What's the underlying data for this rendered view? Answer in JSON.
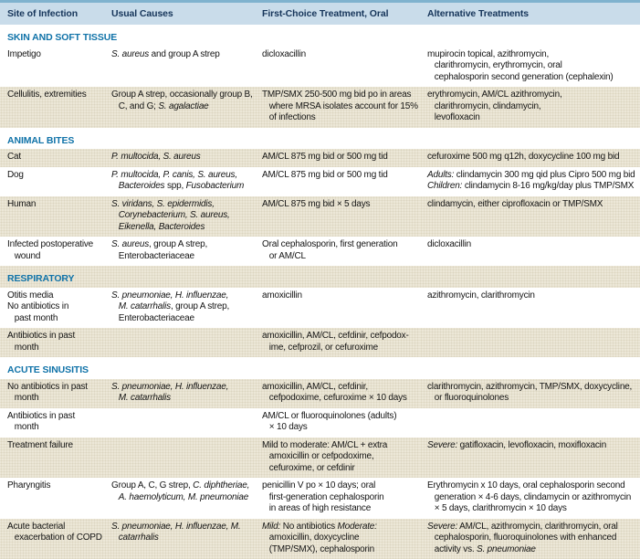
{
  "colors": {
    "top_border": "#7fb2ce",
    "header_bg": "#c9dcea",
    "header_text": "#16355a",
    "section_text": "#0f72a8",
    "row_shade": "#ece7d7",
    "body_text": "#141414",
    "background": "#ffffff"
  },
  "table": {
    "columns": [
      "Site of Infection",
      "Usual Causes",
      "First-Choice Treatment, Oral",
      "Alternative Treatments"
    ],
    "sections": [
      {
        "title": "SKIN AND SOFT TISSUE",
        "shaded": false,
        "rows": [
          {
            "shaded": false,
            "site": "Impetigo",
            "causes": "<i>S. aureus</i> and group A strep",
            "first_choice": "dicloxacillin",
            "alternative": "mupirocin topical, azithromycin,\n   clarithromycin, erythromycin, oral\n   cephalosporin second generation (cephalexin)"
          },
          {
            "shaded": true,
            "site": "Cellulitis, extremities",
            "causes": "Group A strep, occasionally group B,\n   C, and G; <i>S. agalactiae</i>",
            "first_choice": "TMP/SMX 250-500 mg bid po in areas\n   where MRSA isolates account for 15%\n   of infections",
            "alternative": "erythromycin, AM/CL azithromycin,\n   clarithromycin, clindamycin,\n   levofloxacin"
          }
        ]
      },
      {
        "title": "ANIMAL BITES",
        "shaded": false,
        "rows": [
          {
            "shaded": true,
            "site": "Cat",
            "causes": "<i>P. multocida, S. aureus</i>",
            "first_choice": "AM/CL 875 mg bid or 500 mg tid",
            "alternative": "cefuroxime 500 mg q12h, doxycycline 100 mg bid"
          },
          {
            "shaded": false,
            "site": "Dog",
            "causes": "<i>P. multocida, P. canis, S. aureus,\n   Bacteroides</i> spp, <i>Fusobacterium</i>",
            "first_choice": "AM/CL 875 mg bid or 500 mg tid",
            "alternative": "<i>Adults:</i> clindamycin 300 mg qid plus Cipro 500 mg bid\n<i>Children:</i> clindamycin 8-16 mg/kg/day plus TMP/SMX"
          },
          {
            "shaded": true,
            "site": "Human",
            "causes": "<i>S. viridans, S. epidermidis,\n   Corynebacterium, S. aureus,\n   Eikenella, Bacteroides</i>",
            "first_choice": "AM/CL 875 mg bid × 5 days",
            "alternative": "clindamycin, either ciprofloxacin or TMP/SMX"
          },
          {
            "shaded": false,
            "site": "Infected postoperative\n   wound",
            "causes": "<i>S. aureus</i>, group A strep,\n   Enterobacteriaceae",
            "first_choice": "Oral cephalosporin, first generation\n   or AM/CL",
            "alternative": "dicloxacillin"
          }
        ]
      },
      {
        "title": "RESPIRATORY",
        "shaded": true,
        "rows": [
          {
            "shaded": false,
            "site": "Otitis media\nNo antibiotics in\n   past month",
            "causes": "<i>S. pneumoniae, H. influenzae,\n   M. catarrhalis</i>, group A strep,\n   Enterobacteriaceae",
            "first_choice": "amoxicillin",
            "alternative": "azithromycin, clarithromycin"
          },
          {
            "shaded": true,
            "site": "Antibiotics in past\n   month",
            "causes": "",
            "first_choice": "amoxicillin, AM/CL, cefdinir, cefpodox-\n   ime, cefprozil, or cefuroxime",
            "alternative": ""
          }
        ]
      },
      {
        "title": "ACUTE SINUSITIS",
        "shaded": false,
        "rows": [
          {
            "shaded": true,
            "site": "No antibiotics in past\n   month",
            "causes": "<i>S. pneumoniae, H. influenzae,\n   M. catarrhalis</i>",
            "first_choice": "amoxicillin, AM/CL, cefdinir,\n   cefpodoxime, cefuroxime × 10 days",
            "alternative": "clarithromycin, azithromycin, TMP/SMX, doxycycline,\n   or fluoroquinolones"
          },
          {
            "shaded": false,
            "site": "Antibiotics in past\n   month",
            "causes": "",
            "first_choice": "AM/CL or fluoroquinolones (adults)\n   × 10 days",
            "alternative": ""
          },
          {
            "shaded": true,
            "site": "Treatment failure",
            "causes": "",
            "first_choice": "Mild to moderate: AM/CL + extra\n   amoxicillin or cefpodoxime,\n   cefuroxime, or cefdinir",
            "alternative": "<i>Severe:</i> gatifloxacin, levofloxacin, moxifloxacin"
          },
          {
            "shaded": false,
            "site": "Pharyngitis",
            "causes": "Group A, C, G strep, <i>C. diphtheriae,\n   A. haemolyticum, M. pneumoniae</i>",
            "first_choice": "penicillin V po × 10 days; oral\n   first-generation cephalosporin\n   in areas of high resistance",
            "alternative": "Erythromycin x 10 days, oral cephalosporin second\n   generation × 4-6 days, clindamycin or azithromycin\n   × 5 days, clarithromycin × 10 days"
          },
          {
            "shaded": true,
            "site": "Acute bacterial\n   exacerbation of COPD",
            "causes": "<i>S. pneumoniae, H. influenzae, M.\n   catarrhalis</i>",
            "first_choice": "<i>Mild:</i> No antibiotics <i>Moderate:</i>\n   amoxicillin, doxycycline\n   (TMP/SMX), cephalosporin",
            "alternative": "<i>Severe:</i> AM/CL, azithromycin, clarithromycin, oral\n   cephalosporin, fluoroquinolones with enhanced\n   activity vs. <i>S. pneumoniae</i>"
          }
        ]
      }
    ]
  }
}
